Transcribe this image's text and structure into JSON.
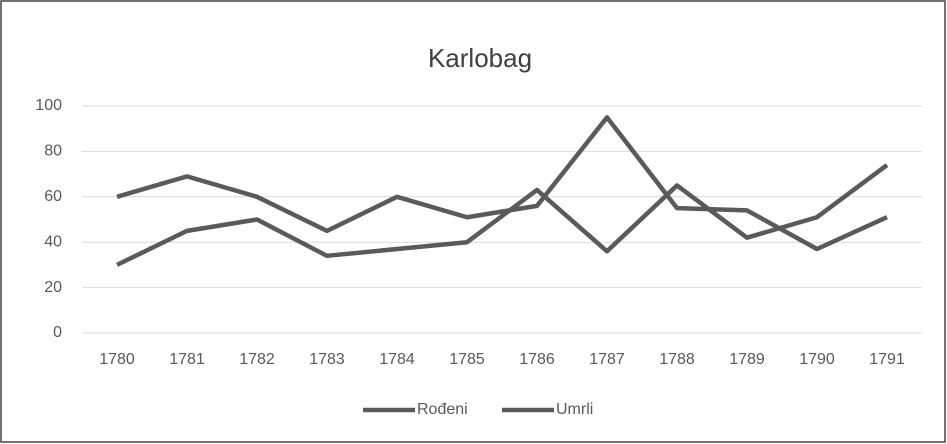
{
  "chart_data": {
    "type": "line",
    "title": "Karlobag",
    "categories": [
      "1780",
      "1781",
      "1782",
      "1783",
      "1784",
      "1785",
      "1786",
      "1787",
      "1788",
      "1789",
      "1790",
      "1791"
    ],
    "series": [
      {
        "name": "Rođeni",
        "color": "#5a5a5a",
        "values": [
          60,
          69,
          60,
          45,
          60,
          51,
          56,
          95,
          55,
          54,
          37,
          51
        ]
      },
      {
        "name": "Umrli",
        "color": "#5a5a5a",
        "values": [
          30,
          45,
          50,
          34,
          37,
          40,
          63,
          36,
          65,
          42,
          51,
          74
        ]
      }
    ],
    "ylim": [
      0,
      100
    ],
    "yticks": [
      0,
      20,
      40,
      60,
      80,
      100
    ],
    "grid": true,
    "legend": "bottom"
  }
}
